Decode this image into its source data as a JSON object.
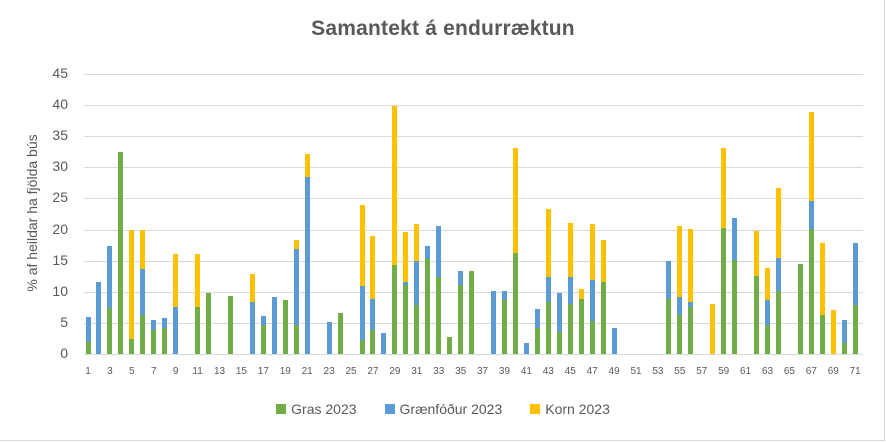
{
  "chart_data": {
    "type": "bar",
    "stacked": true,
    "title": "Samantekt á endurræktun",
    "xlabel": "",
    "ylabel": "% af heildar ha fjölda bús",
    "ylim": [
      0,
      45
    ],
    "yticks": [
      0,
      5,
      10,
      15,
      20,
      25,
      30,
      35,
      40,
      45
    ],
    "grid": true,
    "legend_position": "bottom",
    "categories": [
      1,
      2,
      3,
      4,
      5,
      6,
      7,
      8,
      9,
      10,
      11,
      12,
      13,
      14,
      15,
      16,
      17,
      18,
      19,
      20,
      21,
      22,
      23,
      24,
      25,
      26,
      27,
      28,
      29,
      30,
      31,
      32,
      33,
      34,
      35,
      36,
      37,
      38,
      39,
      40,
      41,
      42,
      43,
      44,
      45,
      46,
      47,
      48,
      49,
      50,
      51,
      52,
      53,
      54,
      55,
      56,
      57,
      58,
      59,
      60,
      61,
      62,
      63,
      64,
      65,
      66,
      67,
      68,
      69,
      70,
      71
    ],
    "xtick_labels": [
      "1",
      "3",
      "5",
      "7",
      "9",
      "11",
      "13",
      "15",
      "17",
      "19",
      "21",
      "23",
      "25",
      "27",
      "29",
      "31",
      "33",
      "35",
      "37",
      "39",
      "41",
      "43",
      "45",
      "47",
      "49",
      "51",
      "53",
      "55",
      "57",
      "59",
      "61",
      "63",
      "65",
      "67",
      "69",
      "71"
    ],
    "series": [
      {
        "name": "Gras 2023",
        "color": "#70AD47",
        "values": [
          2,
          0,
          7.4,
          32.4,
          2.4,
          6.3,
          3.8,
          4.1,
          0,
          0,
          7.6,
          9.8,
          0,
          9.3,
          0,
          0,
          4.6,
          0,
          8.6,
          4.6,
          0,
          0,
          0,
          6.6,
          0,
          2.2,
          3.9,
          0,
          14.3,
          11.1,
          7.8,
          15.3,
          12.4,
          2.8,
          11.1,
          13.3,
          0,
          0,
          8.6,
          16.3,
          0,
          4.1,
          8.3,
          3.6,
          8.1,
          8.9,
          5.3,
          11.6,
          0,
          0,
          0,
          0,
          0,
          8.9,
          6.3,
          7.6,
          0,
          0,
          20.2,
          15.1,
          0,
          12.6,
          4.6,
          10.1,
          0,
          14.4,
          20.1,
          6.3,
          0,
          1.8,
          7.8
        ]
      },
      {
        "name": "Grænfóður 2023",
        "color": "#5B9BD5",
        "values": [
          4,
          11.6,
          10,
          0,
          0,
          7.3,
          1.6,
          1.7,
          7.6,
          0,
          0,
          0,
          0,
          0,
          0,
          8.4,
          1.5,
          9.1,
          0,
          12.3,
          28.4,
          0,
          5.1,
          0,
          0,
          8.7,
          5,
          3.3,
          0,
          0.5,
          7.1,
          2,
          8.2,
          0,
          2.2,
          0,
          0,
          10.1,
          1.5,
          0,
          1.8,
          3.2,
          4.1,
          6.2,
          4.3,
          0,
          6.6,
          0,
          4.1,
          0,
          0,
          0,
          0,
          6,
          2.8,
          0.8,
          0,
          0,
          0,
          6.8,
          0,
          0,
          4,
          5.3,
          0,
          0,
          4.5,
          0,
          0,
          3.6,
          10
        ]
      },
      {
        "name": "Korn 2023",
        "color": "#FFC000",
        "values": [
          0,
          0,
          0,
          0,
          17.5,
          6.3,
          0,
          0,
          8.5,
          0,
          8.5,
          0,
          0,
          0,
          0,
          4.5,
          0,
          0,
          0,
          1.5,
          3.8,
          0,
          0,
          0,
          0,
          13,
          10,
          0,
          25.6,
          8,
          6,
          0,
          0,
          0,
          0,
          0,
          0,
          0,
          0,
          16.8,
          0,
          0,
          10.9,
          0,
          8.7,
          1.5,
          9,
          6.8,
          0,
          0,
          0,
          0,
          0,
          0,
          11.5,
          11.7,
          0,
          8.1,
          12.9,
          0,
          0,
          7.2,
          5.3,
          11.2,
          0,
          0,
          14.3,
          11.5,
          7.1,
          0,
          0
        ]
      }
    ]
  },
  "legend": {
    "items": [
      {
        "label": "Gras 2023",
        "color": "#70AD47"
      },
      {
        "label": "Grænfóður 2023",
        "color": "#5B9BD5"
      },
      {
        "label": "Korn 2023",
        "color": "#FFC000"
      }
    ]
  }
}
